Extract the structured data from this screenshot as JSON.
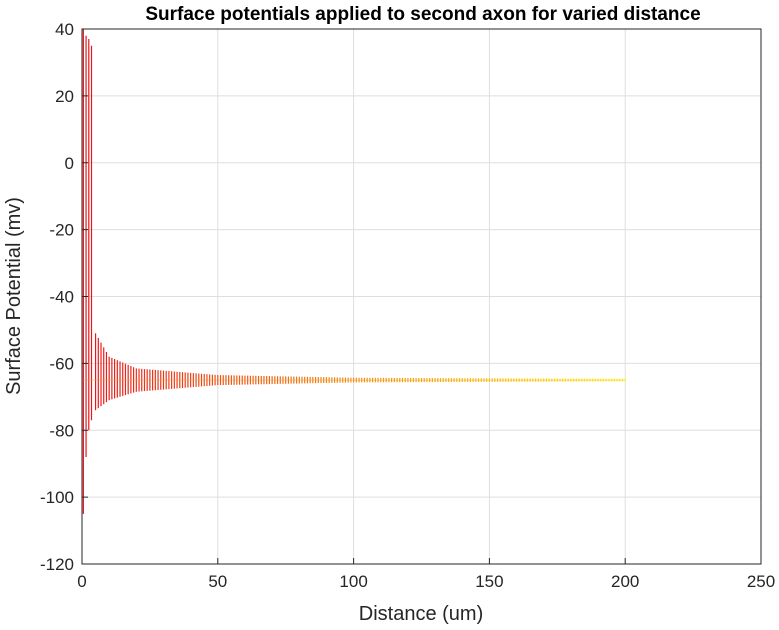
{
  "chart_data": {
    "type": "line",
    "title": "Surface potentials applied to second axon for varied distance",
    "xlabel": "Distance (um)",
    "ylabel": "Surface Potential (mv)",
    "xlim": [
      0,
      250
    ],
    "ylim": [
      -120,
      40
    ],
    "xticks": [
      0,
      50,
      100,
      150,
      200,
      250
    ],
    "yticks": [
      40,
      20,
      0,
      -20,
      -40,
      -60,
      -80,
      -100,
      -120
    ],
    "grid": true,
    "series": [
      {
        "color_start": "#e8141c",
        "color_end": "#ffff00",
        "x_start": 0.5,
        "x_end": 200,
        "steady_value": -65,
        "peak_points": [
          {
            "x": 0.5,
            "max": 40,
            "min": -105
          },
          {
            "x": 1.5,
            "max": 38,
            "min": -88
          },
          {
            "x": 2.5,
            "max": 37,
            "min": -80
          },
          {
            "x": 3.5,
            "max": 35,
            "min": -77
          },
          {
            "x": 5,
            "max": -51,
            "min": -74
          },
          {
            "x": 10,
            "max": -58,
            "min": -71
          },
          {
            "x": 20,
            "max": -61.5,
            "min": -68.5
          },
          {
            "x": 50,
            "max": -63.5,
            "min": -66.5
          },
          {
            "x": 100,
            "max": -64.3,
            "min": -65.7
          },
          {
            "x": 200,
            "max": -64.6,
            "min": -65.4
          }
        ]
      }
    ]
  }
}
